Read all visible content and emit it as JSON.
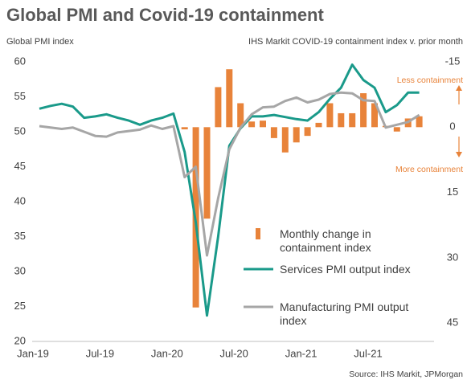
{
  "chart_data": {
    "type": "combo",
    "title": "Global PMI and Covid-19 containment",
    "y_label": "Global PMI index",
    "y2_label": "IHS Markit COVID-19 containment index v. prior month",
    "source": "Source: IHS Markit, JPMorgan",
    "annotations": [
      "Less containment",
      "More containment"
    ],
    "categories": [
      "Jan-19",
      null,
      null,
      null,
      null,
      null,
      "Jul-19",
      null,
      null,
      null,
      null,
      null,
      "Jan-20",
      null,
      null,
      null,
      null,
      null,
      "Jul-20",
      null,
      null,
      null,
      null,
      null,
      "Jan-21",
      null,
      null,
      null,
      null,
      null,
      "Jul-21",
      null,
      null,
      null,
      null
    ],
    "ylim": [
      20,
      60
    ],
    "yticks": [
      20,
      25,
      30,
      35,
      40,
      45,
      50,
      55,
      60
    ],
    "y2lim": [
      49.2,
      -15
    ],
    "y2ticks": [
      -15,
      0,
      15,
      30,
      45
    ],
    "series": [
      {
        "name": "Monthly change in containment index",
        "type": "bar",
        "axis": "y2",
        "color": "#e8833a",
        "values": [
          0,
          0,
          0,
          0,
          0,
          0,
          0,
          0,
          0,
          0,
          0,
          0,
          0,
          0.5,
          41.4,
          21,
          -9.2,
          -13.3,
          -5.5,
          -1.3,
          -1.5,
          2.5,
          5.8,
          3.5,
          2,
          -1,
          -5.5,
          -3.2,
          -3.2,
          -7.8,
          -5.5,
          -0.3,
          1,
          -2,
          -2.5
        ]
      },
      {
        "name": "Services PMI output index",
        "type": "line",
        "color": "#1a9a8a",
        "values": [
          53.3,
          53.7,
          54.0,
          53.6,
          52.0,
          52.2,
          52.5,
          52.0,
          51.6,
          51.0,
          51.6,
          52.0,
          52.6,
          47.1,
          37.0,
          23.7,
          35.0,
          48.0,
          50.5,
          52.2,
          52.2,
          52.4,
          52.1,
          51.8,
          51.6,
          52.8,
          54.7,
          56.3,
          59.6,
          57.4,
          56.3,
          52.8,
          53.8,
          55.6,
          55.6
        ]
      },
      {
        "name": "Manufacturing PMI output index",
        "type": "line",
        "color": "#a6a6a6",
        "values": [
          50.8,
          50.6,
          50.4,
          50.6,
          50.0,
          49.4,
          49.3,
          49.9,
          50.1,
          50.3,
          50.9,
          50.4,
          50.8,
          43.5,
          45.0,
          32.3,
          40.5,
          47.5,
          50.6,
          52.5,
          53.5,
          53.6,
          54.4,
          54.9,
          54.2,
          54.6,
          55.4,
          55.6,
          55.5,
          54.5,
          54.4,
          50.6,
          51.0,
          51.4,
          52.4
        ]
      }
    ]
  }
}
